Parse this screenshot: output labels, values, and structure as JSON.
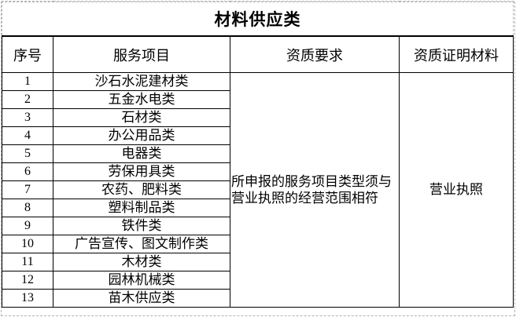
{
  "table": {
    "title": "材料供应类",
    "headers": [
      "序号",
      "服务项目",
      "资质要求",
      "资质证明材料"
    ],
    "rows": [
      {
        "no": "1",
        "item": "沙石水泥建材类"
      },
      {
        "no": "2",
        "item": "五金水电类"
      },
      {
        "no": "3",
        "item": "石材类"
      },
      {
        "no": "4",
        "item": "办公用品类"
      },
      {
        "no": "5",
        "item": "电器类"
      },
      {
        "no": "6",
        "item": "劳保用具类"
      },
      {
        "no": "7",
        "item": "农药、肥料类"
      },
      {
        "no": "8",
        "item": "塑料制品类"
      },
      {
        "no": "9",
        "item": "铁件类"
      },
      {
        "no": "10",
        "item": "广告宣传、图文制作类"
      },
      {
        "no": "11",
        "item": "木材类"
      },
      {
        "no": "12",
        "item": "园林机械类"
      },
      {
        "no": "13",
        "item": "苗木供应类"
      }
    ],
    "qualification_requirement": "所申报的服务项目类型须与\n营业执照的经营范围相符",
    "qualification_proof": "营业执照"
  },
  "colors": {
    "border_solid": "#000000",
    "page_break_dash": "#b3b3b3",
    "text": "#000000",
    "background": "#ffffff"
  }
}
